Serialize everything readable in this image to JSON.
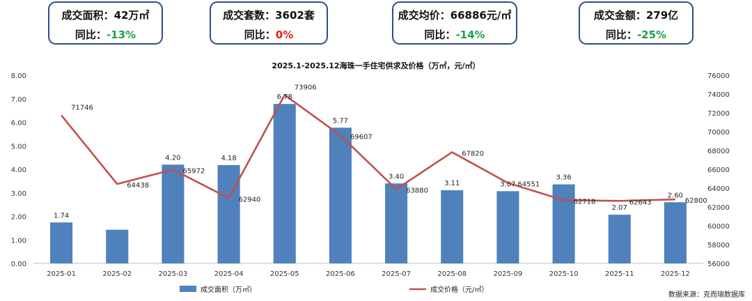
{
  "kpis": [
    {
      "label": "成交面积：",
      "value": "42万㎡",
      "change_label": "同比：",
      "change": "-13%",
      "direction": "down"
    },
    {
      "label": "成交套数：",
      "value": "3602套",
      "change_label": "同比：",
      "change": "0%",
      "direction": "zero"
    },
    {
      "label": "成交均价：",
      "value": "66886元/㎡",
      "change_label": "同比：",
      "change": "-14%",
      "direction": "down"
    },
    {
      "label": "成交金额：",
      "value": "279亿",
      "change_label": "同比：",
      "change": "-25%",
      "direction": "down"
    }
  ],
  "source": "数据来源：克而瑞数据库",
  "colors": {
    "bar": "#4f81bd",
    "line": "#c0504d",
    "card_border": "#2f4d86",
    "down": "#1aa34a",
    "up": "#e0201a"
  },
  "chart_data": {
    "type": "bar+line",
    "title": "2025.1-2025.12海珠一手住宅供求及价格（万㎡，元/㎡）",
    "categories": [
      "2025-01",
      "2025-02",
      "2025-03",
      "2025-04",
      "2025-05",
      "2025-06",
      "2025-07",
      "2025-08",
      "2025-09",
      "2025-10",
      "2025-11",
      "2025-12"
    ],
    "series": [
      {
        "name": "成交面积（万㎡）",
        "type": "bar",
        "axis": "left",
        "values": [
          1.74,
          1.43,
          4.2,
          4.18,
          6.78,
          5.77,
          3.4,
          3.11,
          3.07,
          3.36,
          2.07,
          2.6
        ],
        "labels": [
          "1.74",
          "",
          "4.20",
          "4.18",
          "6.78",
          "5.77",
          "3.40",
          "3.11",
          "3.07",
          "3.36",
          "2.07",
          "2.60"
        ]
      },
      {
        "name": "成交价格（元/㎡）",
        "type": "line",
        "axis": "right",
        "values": [
          71746,
          64438,
          65972,
          62940,
          73906,
          69607,
          63880,
          67820,
          64551,
          62718,
          62643,
          62800
        ],
        "labels": [
          "71746",
          "64438",
          "65972",
          "62940",
          "73906",
          "69607",
          "63880",
          "67820",
          "64551",
          "62718",
          "62643",
          "62800"
        ]
      }
    ],
    "ylim_left": [
      0,
      8
    ],
    "yticks_left": [
      "0.00",
      "1.00",
      "2.00",
      "3.00",
      "4.00",
      "5.00",
      "6.00",
      "7.00",
      "8.00"
    ],
    "ylim_right": [
      56000,
      76000
    ],
    "yticks_right": [
      "56000",
      "58000",
      "60000",
      "62000",
      "64000",
      "66000",
      "68000",
      "70000",
      "72000",
      "74000",
      "76000"
    ],
    "legend_position": "bottom",
    "grid": false
  }
}
